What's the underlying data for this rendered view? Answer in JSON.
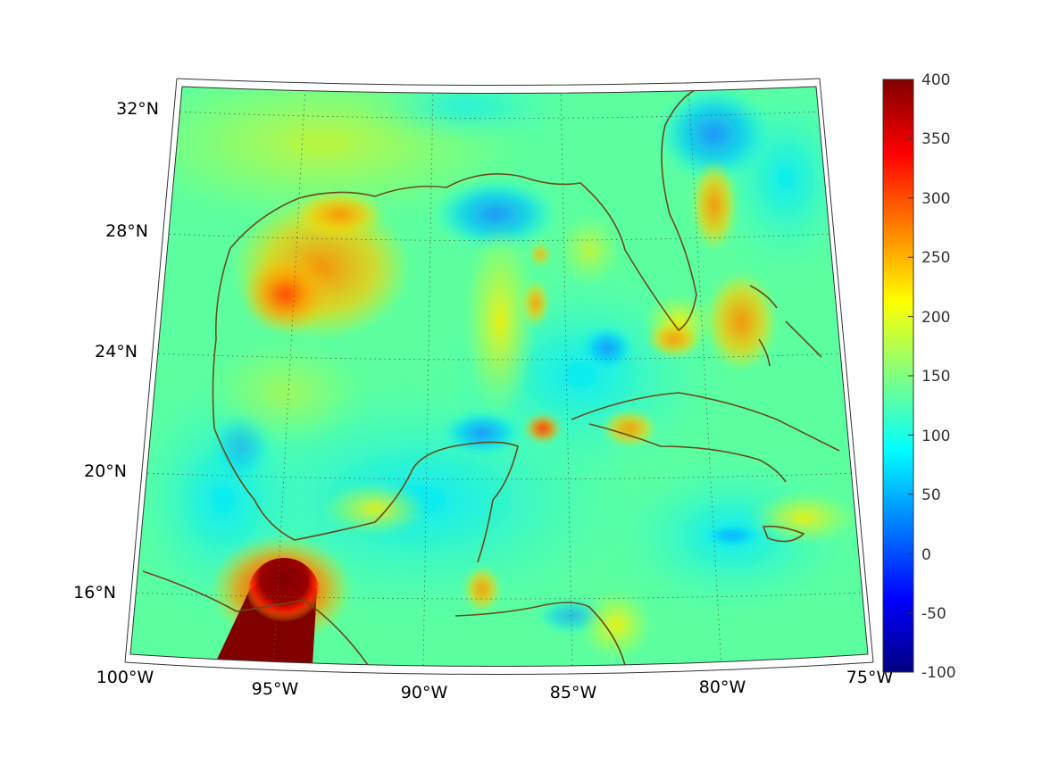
{
  "map": {
    "projection": "conic",
    "field": "scalar field over Gulf of Mexico / Caribbean",
    "lon_ticks": [
      "100°W",
      "95°W",
      "90°W",
      "85°W",
      "80°W",
      "75°W"
    ],
    "lat_ticks": [
      "32°N",
      "28°N",
      "24°N",
      "20°N",
      "16°N"
    ],
    "coastline_color": "#6b4a1a",
    "gridline_style": "dotted"
  },
  "colorbar": {
    "colormap": "jet",
    "min": -100,
    "max": 400,
    "ticks": [
      "400",
      "350",
      "300",
      "250",
      "200",
      "150",
      "100",
      "50",
      "0",
      "-50",
      "-100"
    ],
    "colors": [
      "#000080",
      "#0000ff",
      "#0080ff",
      "#00ffff",
      "#80ff80",
      "#ffff00",
      "#ff8000",
      "#ff0000",
      "#800000"
    ]
  }
}
